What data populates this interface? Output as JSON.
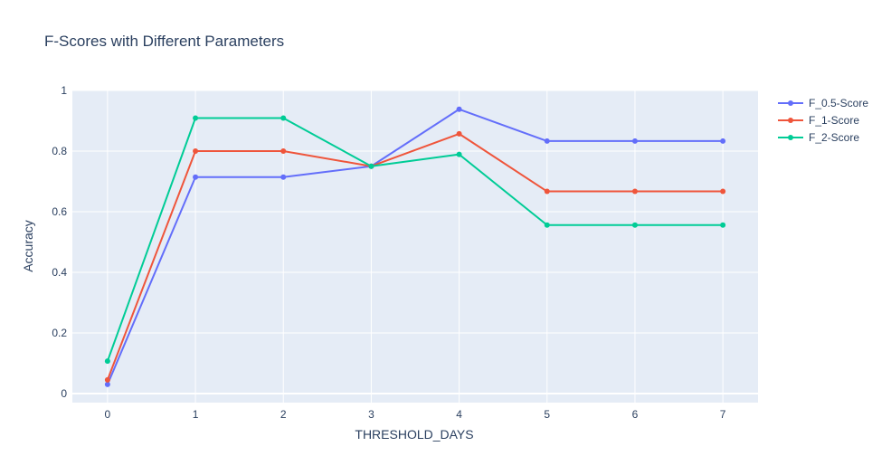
{
  "chart_data": {
    "type": "line",
    "title": "F-Scores with Different Parameters",
    "xlabel": "THRESHOLD_DAYS",
    "ylabel": "Accuracy",
    "x": [
      0,
      1,
      2,
      3,
      4,
      5,
      6,
      7
    ],
    "xticks": [
      "0",
      "1",
      "2",
      "3",
      "4",
      "5",
      "6",
      "7"
    ],
    "yticks": [
      "0",
      "0.2",
      "0.4",
      "0.6",
      "0.8",
      "1"
    ],
    "xlim": [
      -0.4,
      7.4
    ],
    "ylim": [
      -0.03,
      1.0
    ],
    "grid": true,
    "legend_position": "top-right",
    "colors": {
      "plot_bg": "#e5ecf6",
      "grid": "#ffffff",
      "text": "#2a3f5f"
    },
    "series": [
      {
        "name": "F_0.5-Score",
        "color": "#636efa",
        "values": [
          0.03,
          0.714,
          0.714,
          0.75,
          0.938,
          0.833,
          0.833,
          0.833
        ]
      },
      {
        "name": "F_1-Score",
        "color": "#ef553b",
        "values": [
          0.045,
          0.8,
          0.8,
          0.75,
          0.857,
          0.667,
          0.667,
          0.667
        ]
      },
      {
        "name": "F_2-Score",
        "color": "#00cc96",
        "values": [
          0.107,
          0.909,
          0.909,
          0.75,
          0.789,
          0.556,
          0.556,
          0.556
        ]
      }
    ]
  }
}
